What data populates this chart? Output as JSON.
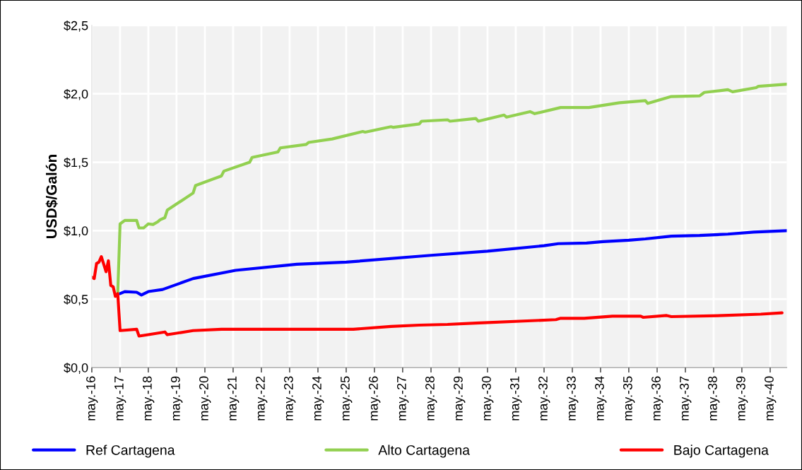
{
  "chart_data": {
    "type": "line",
    "ylabel": "USD$/Galón",
    "legend": "bottom",
    "grid": true,
    "line_style": "solid",
    "marker": "none",
    "xlim": [
      "2016-05",
      "2040-12"
    ],
    "xticks": [
      {
        "value": "2016-05",
        "label": "may.-16"
      },
      {
        "value": "2017-05",
        "label": "may.-17"
      },
      {
        "value": "2018-05",
        "label": "may.-18"
      },
      {
        "value": "2019-05",
        "label": "may.-19"
      },
      {
        "value": "2020-05",
        "label": "may.-20"
      },
      {
        "value": "2021-05",
        "label": "may.-21"
      },
      {
        "value": "2022-05",
        "label": "may.-22"
      },
      {
        "value": "2023-05",
        "label": "may.-23"
      },
      {
        "value": "2024-05",
        "label": "may.-24"
      },
      {
        "value": "2025-05",
        "label": "may.-25"
      },
      {
        "value": "2026-05",
        "label": "may.-26"
      },
      {
        "value": "2027-05",
        "label": "may.-27"
      },
      {
        "value": "2028-05",
        "label": "may.-28"
      },
      {
        "value": "2029-05",
        "label": "may.-29"
      },
      {
        "value": "2030-05",
        "label": "may.-30"
      },
      {
        "value": "2031-05",
        "label": "may.-31"
      },
      {
        "value": "2032-05",
        "label": "may.-32"
      },
      {
        "value": "2033-05",
        "label": "may.-33"
      },
      {
        "value": "2034-05",
        "label": "may.-34"
      },
      {
        "value": "2035-05",
        "label": "may.-35"
      },
      {
        "value": "2036-05",
        "label": "may.-36"
      },
      {
        "value": "2037-05",
        "label": "may.-37"
      },
      {
        "value": "2038-05",
        "label": "may.-38"
      },
      {
        "value": "2039-05",
        "label": "may.-39"
      },
      {
        "value": "2040-05",
        "label": "may.-40"
      }
    ],
    "ylim": [
      0,
      2.5
    ],
    "yticks": [
      {
        "value": 0,
        "label": "$0,0"
      },
      {
        "value": 0.5,
        "label": "$0,5"
      },
      {
        "value": 1.0,
        "label": "$1,0"
      },
      {
        "value": 1.5,
        "label": "$1,5"
      },
      {
        "value": 2.0,
        "label": "$2,0"
      },
      {
        "value": 2.5,
        "label": "$2,5"
      }
    ],
    "series": [
      {
        "name": "Ref Cartagena",
        "color": "#0000ff",
        "x": [
          "2017-04",
          "2017-05",
          "2017-07",
          "2017-12",
          "2018-02",
          "2018-05",
          "2018-11",
          "2019-12",
          "2021-06",
          "2023-08",
          "2025-05",
          "2028-05",
          "2030-05",
          "2032-05",
          "2032-11",
          "2033-11",
          "2034-06",
          "2035-05",
          "2035-12",
          "2036-11",
          "2037-11",
          "2038-11",
          "2039-10",
          "2040-12"
        ],
        "values": [
          0.54,
          0.54,
          0.555,
          0.55,
          0.53,
          0.555,
          0.57,
          0.65,
          0.71,
          0.755,
          0.77,
          0.82,
          0.85,
          0.89,
          0.905,
          0.91,
          0.92,
          0.93,
          0.94,
          0.96,
          0.965,
          0.975,
          0.99,
          1.0
        ]
      },
      {
        "name": "Alto Cartagena",
        "color": "#92d050",
        "x": [
          "2017-04",
          "2017-05",
          "2017-07",
          "2017-12",
          "2018-01",
          "2018-03",
          "2018-05",
          "2018-07",
          "2018-09",
          "2018-10",
          "2018-12",
          "2019-01",
          "2019-12",
          "2020-01",
          "2020-12",
          "2021-01",
          "2021-12",
          "2022-01",
          "2022-12",
          "2023-01",
          "2023-12",
          "2024-01",
          "2024-11",
          "2025-12",
          "2026-01",
          "2026-12",
          "2027-01",
          "2027-12",
          "2028-01",
          "2028-12",
          "2029-01",
          "2029-12",
          "2030-01",
          "2030-12",
          "2031-01",
          "2031-11",
          "2032-01",
          "2032-12",
          "2033-12",
          "2035-01",
          "2035-12",
          "2036-01",
          "2036-11",
          "2037-11",
          "2038-01",
          "2038-11",
          "2039-01",
          "2039-11",
          "2039-12",
          "2040-12"
        ],
        "values": [
          0.54,
          1.05,
          1.075,
          1.075,
          1.02,
          1.02,
          1.05,
          1.045,
          1.065,
          1.08,
          1.095,
          1.15,
          1.275,
          1.33,
          1.4,
          1.435,
          1.5,
          1.535,
          1.575,
          1.605,
          1.63,
          1.645,
          1.67,
          1.725,
          1.72,
          1.76,
          1.755,
          1.78,
          1.8,
          1.81,
          1.8,
          1.82,
          1.8,
          1.845,
          1.83,
          1.87,
          1.855,
          1.9,
          1.9,
          1.935,
          1.95,
          1.93,
          1.98,
          1.985,
          2.01,
          2.03,
          2.015,
          2.045,
          2.055,
          2.07
        ]
      },
      {
        "name": "Bajo Cartagena",
        "color": "#ff0000",
        "x": [
          "2016-05",
          "2016-06",
          "2016-07",
          "2016-08",
          "2016-09",
          "2016-11",
          "2016-12",
          "2017-01",
          "2017-02",
          "2017-03",
          "2017-04",
          "2017-05",
          "2017-12",
          "2018-01",
          "2018-05",
          "2018-12",
          "2019-01",
          "2019-12",
          "2020-12",
          "2023-08",
          "2025-08",
          "2026-12",
          "2027-12",
          "2028-12",
          "2029-12",
          "2032-10",
          "2032-12",
          "2033-10",
          "2034-10",
          "2035-10",
          "2035-11",
          "2036-09",
          "2036-11",
          "2038-09",
          "2040-01",
          "2040-10"
        ],
        "values": [
          0.66,
          0.65,
          0.76,
          0.77,
          0.81,
          0.7,
          0.78,
          0.6,
          0.59,
          0.52,
          0.54,
          0.27,
          0.28,
          0.23,
          0.24,
          0.26,
          0.24,
          0.27,
          0.28,
          0.28,
          0.28,
          0.3,
          0.31,
          0.315,
          0.325,
          0.35,
          0.36,
          0.36,
          0.375,
          0.375,
          0.367,
          0.38,
          0.372,
          0.38,
          0.39,
          0.4
        ]
      }
    ]
  }
}
